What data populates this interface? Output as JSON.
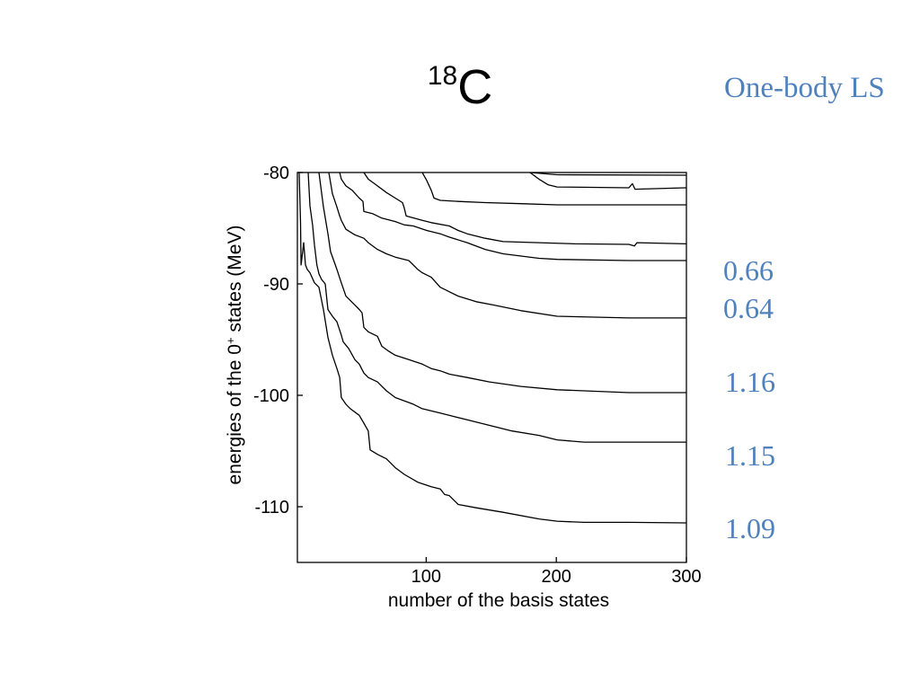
{
  "slide": {
    "title": {
      "mass_number": "18",
      "element": "C"
    },
    "annotation_heading": "One-body LS",
    "annotation_values": [
      "0.66",
      "0.64",
      "1.16",
      "1.15",
      "1.09"
    ],
    "colors": {
      "annotation": "#4f81bd",
      "title": "#000000"
    }
  },
  "chart_data": {
    "type": "line",
    "xlabel": "number of the basis states",
    "ylabel": {
      "text_before": "energies of the 0",
      "superscript": "+",
      "text_after": " states (MeV)"
    },
    "xlim": [
      1,
      300
    ],
    "ylim": [
      -115,
      -80
    ],
    "xticks": [
      100,
      200,
      300
    ],
    "yticks": [
      -80,
      -90,
      -100,
      -110
    ],
    "grid": false,
    "legend": "none",
    "line_color": "#000000",
    "series": [
      {
        "points": [
          [
            2.4,
            -80
          ],
          [
            3.4,
            -84.5
          ],
          [
            3.8,
            -88.3
          ],
          [
            5.1,
            -87.1
          ],
          [
            5.8,
            -86.3
          ],
          [
            7.2,
            -88.3
          ],
          [
            8.6,
            -88.7
          ],
          [
            10.7,
            -89.0
          ],
          [
            14.1,
            -89.9
          ],
          [
            17.6,
            -90.3
          ],
          [
            21.0,
            -92.3
          ],
          [
            24.5,
            -94.8
          ],
          [
            27.9,
            -96.4
          ],
          [
            31.4,
            -97.6
          ],
          [
            33.5,
            -98.4
          ],
          [
            34.8,
            -100.2
          ],
          [
            38.3,
            -100.8
          ],
          [
            41.7,
            -101.2
          ],
          [
            48.6,
            -101.8
          ],
          [
            52.1,
            -102.5
          ],
          [
            55.5,
            -103.2
          ],
          [
            56.9,
            -104.9
          ],
          [
            62.5,
            -105.3
          ],
          [
            69.4,
            -105.7
          ],
          [
            76.3,
            -106.5
          ],
          [
            83.2,
            -107.1
          ],
          [
            93.5,
            -107.8
          ],
          [
            103.9,
            -108.2
          ],
          [
            110.8,
            -108.4
          ],
          [
            114.2,
            -108.9
          ],
          [
            117.7,
            -109.0
          ],
          [
            124.6,
            -109.8
          ],
          [
            138.4,
            -110.1
          ],
          [
            159.1,
            -110.5
          ],
          [
            186.7,
            -111.1
          ],
          [
            200.6,
            -111.3
          ],
          [
            221.3,
            -111.4
          ],
          [
            255.8,
            -111.4
          ],
          [
            300,
            -111.45
          ]
        ]
      },
      {
        "points": [
          [
            9.3,
            -80
          ],
          [
            10.7,
            -83.0
          ],
          [
            12.7,
            -84.7
          ],
          [
            14.1,
            -86.5
          ],
          [
            16.0,
            -88.3
          ],
          [
            17.6,
            -89.1
          ],
          [
            19.6,
            -89.6
          ],
          [
            22.4,
            -90.0
          ],
          [
            24.5,
            -92.3
          ],
          [
            27.9,
            -92.9
          ],
          [
            31.4,
            -93.4
          ],
          [
            34.8,
            -94.6
          ],
          [
            36.2,
            -95.2
          ],
          [
            40.4,
            -95.8
          ],
          [
            45.2,
            -96.8
          ],
          [
            48.6,
            -97.2
          ],
          [
            52.1,
            -98.0
          ],
          [
            55.5,
            -98.4
          ],
          [
            62.5,
            -98.8
          ],
          [
            69.4,
            -99.6
          ],
          [
            76.3,
            -100.2
          ],
          [
            90.1,
            -100.8
          ],
          [
            97.0,
            -101.2
          ],
          [
            110.8,
            -101.6
          ],
          [
            117.7,
            -101.8
          ],
          [
            131.5,
            -102.2
          ],
          [
            145.3,
            -102.6
          ],
          [
            166.0,
            -103.2
          ],
          [
            186.7,
            -103.6
          ],
          [
            200.6,
            -104.0
          ],
          [
            221.3,
            -104.2
          ],
          [
            300,
            -104.2
          ]
        ]
      },
      {
        "points": [
          [
            17.6,
            -80
          ],
          [
            21.0,
            -83.1
          ],
          [
            24.5,
            -85.5
          ],
          [
            26.5,
            -87.1
          ],
          [
            31.4,
            -88.7
          ],
          [
            34.8,
            -89.9
          ],
          [
            38.3,
            -91.1
          ],
          [
            45.2,
            -91.9
          ],
          [
            48.6,
            -92.3
          ],
          [
            50.7,
            -92.6
          ],
          [
            52.1,
            -93.9
          ],
          [
            55.5,
            -94.3
          ],
          [
            62.5,
            -94.7
          ],
          [
            65.9,
            -95.6
          ],
          [
            70.7,
            -96.0
          ],
          [
            76.3,
            -96.4
          ],
          [
            86.6,
            -96.8
          ],
          [
            97.0,
            -97.2
          ],
          [
            103.9,
            -97.6
          ],
          [
            110.8,
            -97.8
          ],
          [
            117.7,
            -98.1
          ],
          [
            131.5,
            -98.4
          ],
          [
            148.7,
            -98.8
          ],
          [
            172.9,
            -99.2
          ],
          [
            200.6,
            -99.5
          ],
          [
            255.8,
            -99.76
          ],
          [
            300,
            -99.76
          ]
        ]
      },
      {
        "points": [
          [
            25.2,
            -80
          ],
          [
            27.9,
            -81.9
          ],
          [
            31.4,
            -83.1
          ],
          [
            33.5,
            -83.9
          ],
          [
            34.8,
            -84.3
          ],
          [
            38.3,
            -85.1
          ],
          [
            45.2,
            -85.6
          ],
          [
            52.1,
            -85.9
          ],
          [
            55.5,
            -86.3
          ],
          [
            62.5,
            -86.9
          ],
          [
            69.4,
            -87.3
          ],
          [
            76.3,
            -87.6
          ],
          [
            86.6,
            -87.9
          ],
          [
            90.1,
            -88.3
          ],
          [
            93.5,
            -88.7
          ],
          [
            97.0,
            -89.0
          ],
          [
            103.9,
            -89.4
          ],
          [
            110.8,
            -90.3
          ],
          [
            117.7,
            -90.7
          ],
          [
            124.6,
            -91.1
          ],
          [
            138.4,
            -91.6
          ],
          [
            152.2,
            -91.9
          ],
          [
            172.9,
            -92.4
          ],
          [
            200.6,
            -92.9
          ],
          [
            255.8,
            -93.06
          ],
          [
            300,
            -93.06
          ]
        ]
      },
      {
        "points": [
          [
            33.5,
            -80
          ],
          [
            34.8,
            -80.6
          ],
          [
            38.3,
            -81.2
          ],
          [
            43.1,
            -81.6
          ],
          [
            48.6,
            -82.3
          ],
          [
            51.4,
            -82.6
          ],
          [
            52.1,
            -83.5
          ],
          [
            59.0,
            -83.7
          ],
          [
            65.9,
            -84.1
          ],
          [
            76.3,
            -84.4
          ],
          [
            83.2,
            -84.7
          ],
          [
            90.1,
            -84.8
          ],
          [
            100.4,
            -85.2
          ],
          [
            110.8,
            -85.5
          ],
          [
            117.7,
            -85.8
          ],
          [
            131.5,
            -86.3
          ],
          [
            145.3,
            -86.9
          ],
          [
            159.1,
            -87.3
          ],
          [
            186.7,
            -87.7
          ],
          [
            200.6,
            -87.8
          ],
          [
            255.8,
            -87.9
          ],
          [
            300,
            -87.9
          ]
        ]
      },
      {
        "points": [
          [
            52.1,
            -80
          ],
          [
            55.5,
            -80.6
          ],
          [
            62.5,
            -81.2
          ],
          [
            69.4,
            -81.8
          ],
          [
            76.3,
            -82.3
          ],
          [
            81.8,
            -82.7
          ],
          [
            83.2,
            -83.2
          ],
          [
            84.6,
            -83.9
          ],
          [
            97.0,
            -84.3
          ],
          [
            103.9,
            -84.5
          ],
          [
            117.7,
            -84.8
          ],
          [
            124.6,
            -85.2
          ],
          [
            131.5,
            -85.5
          ],
          [
            145.3,
            -85.9
          ],
          [
            159.1,
            -86.2
          ],
          [
            186.7,
            -86.3
          ],
          [
            214.4,
            -86.4
          ],
          [
            255.8,
            -86.45
          ],
          [
            260.0,
            -86.6
          ],
          [
            262.0,
            -86.3
          ],
          [
            300,
            -86.4
          ]
        ]
      },
      {
        "points": [
          [
            97.0,
            -80
          ],
          [
            100.4,
            -80.7
          ],
          [
            103.9,
            -81.6
          ],
          [
            106.0,
            -82.3
          ],
          [
            110.8,
            -82.5
          ],
          [
            124.6,
            -82.6
          ],
          [
            145.3,
            -82.7
          ],
          [
            172.9,
            -82.8
          ],
          [
            200.6,
            -82.9
          ],
          [
            300,
            -82.9
          ]
        ]
      },
      {
        "points": [
          [
            179.8,
            -80
          ],
          [
            186.7,
            -80.6
          ],
          [
            193.6,
            -81.1
          ],
          [
            200.6,
            -81.3
          ],
          [
            255.8,
            -81.37
          ],
          [
            258.5,
            -81.0
          ],
          [
            260.5,
            -81.5
          ],
          [
            300,
            -81.37
          ]
        ]
      },
      {
        "points": [
          [
            179.8,
            -80
          ],
          [
            200.6,
            -80.2
          ],
          [
            300,
            -80.24
          ]
        ]
      }
    ]
  }
}
